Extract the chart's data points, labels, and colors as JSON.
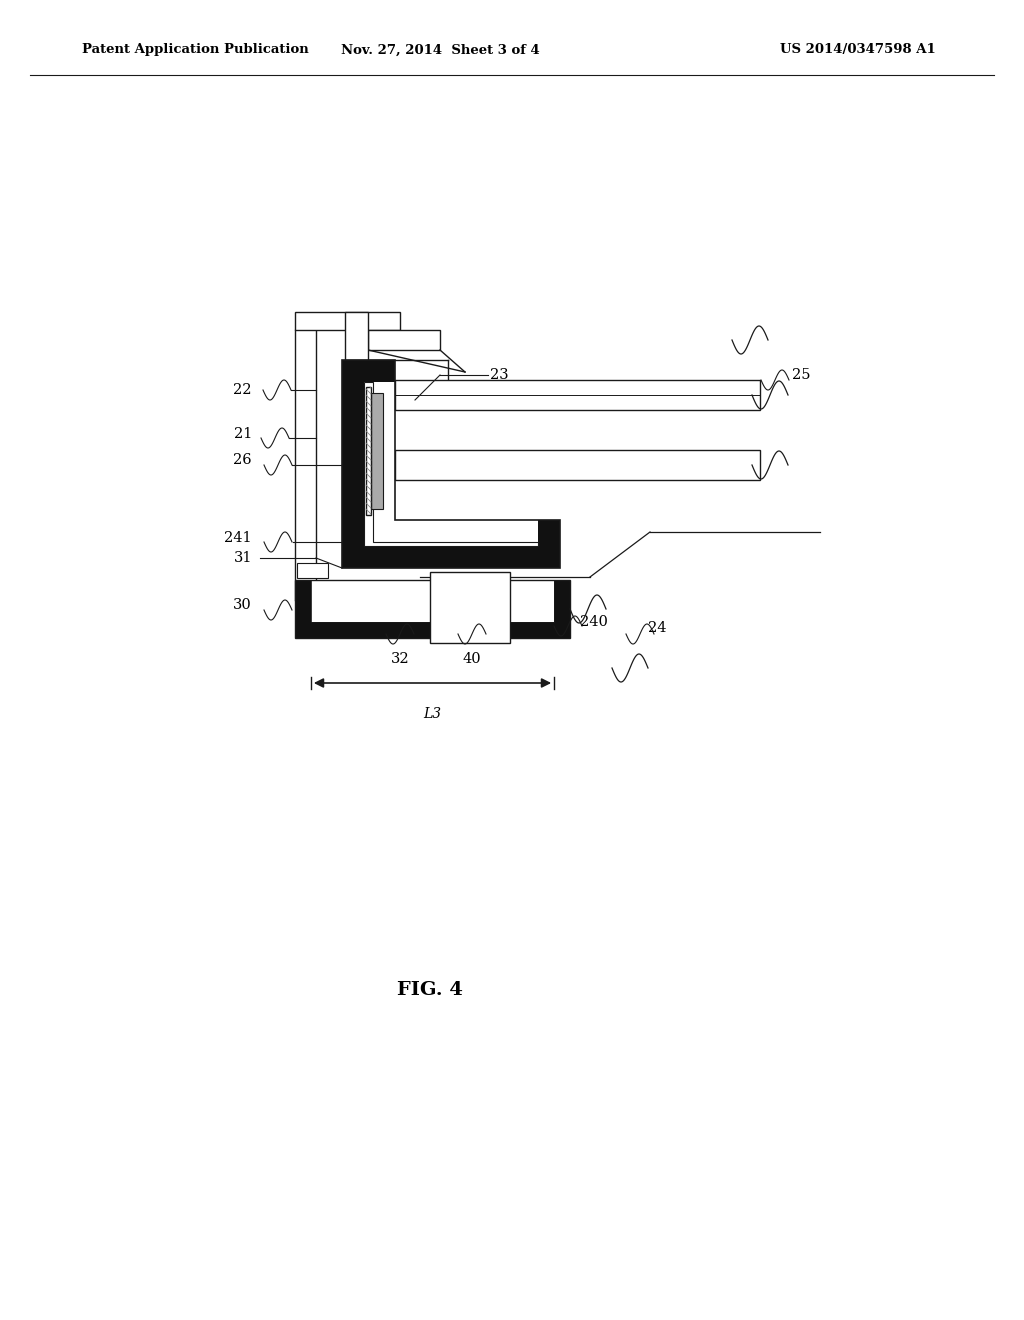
{
  "header_left": "Patent Application Publication",
  "header_mid": "Nov. 27, 2014  Sheet 3 of 4",
  "header_right": "US 2014/0347598 A1",
  "figure_label": "FIG. 4",
  "bg": "#ffffff",
  "lc": "#1a1a1a",
  "black": "#111111"
}
